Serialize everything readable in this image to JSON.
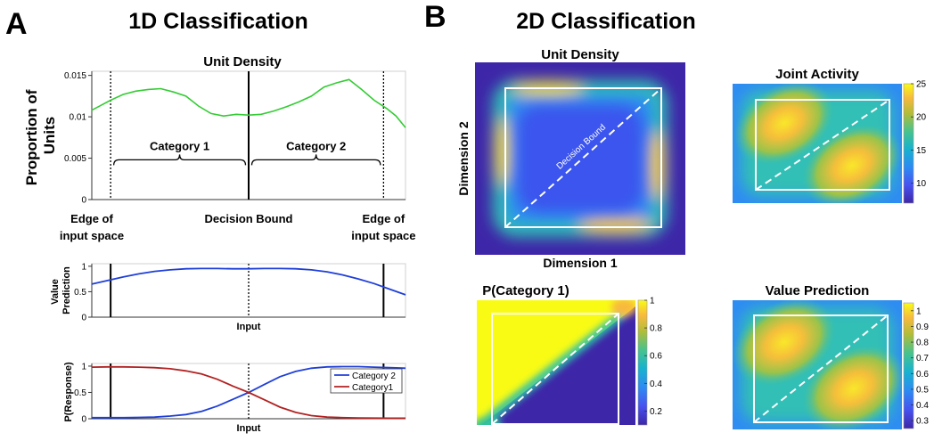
{
  "figure": {
    "panel_a_letter": "A",
    "panel_a_title": "1D Classification",
    "panel_b_letter": "B",
    "panel_b_title": "2D Classification"
  },
  "chart_data": [
    {
      "id": "unit-density-1d",
      "type": "line",
      "title": "Unit Density",
      "xlabel": "",
      "ylabel": "Proportion of Units",
      "xlim": [
        0,
        1
      ],
      "ylim": [
        0,
        0.0155
      ],
      "yticks": [
        0,
        0.005,
        0.01,
        0.015
      ],
      "ytick_labels": [
        "0",
        "0.005",
        "0.01",
        "0.015"
      ],
      "x": [
        0,
        0.03,
        0.06,
        0.1,
        0.14,
        0.18,
        0.22,
        0.26,
        0.3,
        0.34,
        0.38,
        0.42,
        0.46,
        0.5,
        0.54,
        0.58,
        0.62,
        0.66,
        0.7,
        0.74,
        0.78,
        0.82,
        0.86,
        0.9,
        0.94,
        0.97,
        1.0
      ],
      "series": [
        {
          "color": "#33cc33",
          "values": [
            0.0108,
            0.0114,
            0.012,
            0.0127,
            0.0131,
            0.0133,
            0.0134,
            0.013,
            0.0125,
            0.0113,
            0.0104,
            0.0101,
            0.0103,
            0.0102,
            0.0103,
            0.0107,
            0.0112,
            0.0118,
            0.0125,
            0.0136,
            0.0141,
            0.0145,
            0.0133,
            0.012,
            0.011,
            0.0101,
            0.0087
          ]
        }
      ],
      "vlines": [
        {
          "x": 0.06,
          "style": "dotted"
        },
        {
          "x": 0.5,
          "style": "solid"
        },
        {
          "x": 0.93,
          "style": "dotted"
        }
      ],
      "braces": [
        {
          "x0": 0.07,
          "x1": 0.49,
          "y": 0.0048,
          "label": "Category 1"
        },
        {
          "x0": 0.51,
          "x1": 0.92,
          "y": 0.0048,
          "label": "Category 2"
        }
      ],
      "annotations": [
        {
          "text": "Edge of\ninput space",
          "x": 0.0,
          "align": "center"
        },
        {
          "text": "Decision Bound",
          "x": 0.5,
          "align": "center"
        },
        {
          "text": "Edge of\ninput space",
          "x": 0.93,
          "align": "center"
        }
      ],
      "grid": false
    },
    {
      "id": "value-prediction-1d",
      "type": "line",
      "title": "",
      "xlabel": "Input",
      "ylabel": "Value\nPrediction",
      "xlim": [
        0,
        1
      ],
      "ylim": [
        0,
        1.05
      ],
      "yticks": [
        0,
        0.5,
        1
      ],
      "ytick_labels": [
        "0",
        "0.5",
        "1"
      ],
      "x": [
        0,
        0.05,
        0.1,
        0.15,
        0.2,
        0.25,
        0.3,
        0.35,
        0.4,
        0.45,
        0.5,
        0.55,
        0.6,
        0.65,
        0.7,
        0.75,
        0.8,
        0.85,
        0.9,
        0.95,
        1.0
      ],
      "series": [
        {
          "color": "#1f3fd8",
          "values": [
            0.65,
            0.72,
            0.79,
            0.85,
            0.9,
            0.93,
            0.95,
            0.955,
            0.955,
            0.95,
            0.95,
            0.955,
            0.955,
            0.95,
            0.93,
            0.89,
            0.83,
            0.75,
            0.66,
            0.55,
            0.44
          ]
        }
      ],
      "vlines": [
        {
          "x": 0.06,
          "style": "solid"
        },
        {
          "x": 0.5,
          "style": "dotted"
        },
        {
          "x": 0.93,
          "style": "solid"
        }
      ],
      "grid": false
    },
    {
      "id": "p-response-1d",
      "type": "line",
      "title": "",
      "xlabel": "Input",
      "ylabel": "P(Response)",
      "xlim": [
        0,
        1
      ],
      "ylim": [
        0,
        1.05
      ],
      "yticks": [
        0,
        0.5,
        1
      ],
      "ytick_labels": [
        "0",
        "0.5",
        "1"
      ],
      "x": [
        0,
        0.05,
        0.1,
        0.15,
        0.2,
        0.25,
        0.3,
        0.35,
        0.4,
        0.45,
        0.5,
        0.55,
        0.6,
        0.65,
        0.7,
        0.75,
        0.8,
        0.85,
        0.9,
        0.95,
        1.0
      ],
      "series": [
        {
          "name": "Category 2",
          "color": "#1f3fd8",
          "values": [
            0.02,
            0.02,
            0.02,
            0.025,
            0.03,
            0.05,
            0.08,
            0.14,
            0.24,
            0.37,
            0.5,
            0.65,
            0.8,
            0.9,
            0.96,
            0.985,
            0.99,
            0.99,
            0.98,
            0.97,
            0.96
          ]
        },
        {
          "name": "Category1",
          "color": "#b22222",
          "values": [
            0.98,
            0.985,
            0.985,
            0.98,
            0.97,
            0.95,
            0.91,
            0.85,
            0.75,
            0.62,
            0.5,
            0.36,
            0.22,
            0.12,
            0.06,
            0.03,
            0.02,
            0.015,
            0.012,
            0.01,
            0.01
          ]
        }
      ],
      "vlines": [
        {
          "x": 0.06,
          "style": "solid"
        },
        {
          "x": 0.5,
          "style": "dotted"
        },
        {
          "x": 0.93,
          "style": "solid"
        }
      ],
      "legend": "top-right",
      "grid": false
    },
    {
      "id": "unit-density-2d",
      "type": "heatmap",
      "title": "Unit Density",
      "xlabel": "Dimension 1",
      "ylabel": "Dimension 2",
      "annotation": "Decision Bound",
      "colorbar": false,
      "pattern": "ring"
    },
    {
      "id": "joint-activity-2d",
      "type": "heatmap",
      "title": "Joint Activity",
      "xlabel": "",
      "ylabel": "",
      "colorbar": true,
      "clim": [
        7,
        25
      ],
      "colorbar_ticks": [
        10,
        15,
        20,
        25
      ],
      "colorbar_tick_labels": [
        "10",
        "15",
        "20",
        "25"
      ],
      "pattern": "two-lobes"
    },
    {
      "id": "p-category1-2d",
      "type": "heatmap",
      "title": "P(Category 1)",
      "xlabel": "",
      "ylabel": "",
      "colorbar": true,
      "clim": [
        0.1,
        1
      ],
      "colorbar_ticks": [
        0.2,
        0.4,
        0.6,
        0.8,
        1
      ],
      "colorbar_tick_labels": [
        "0.2",
        "0.4",
        "0.6",
        "0.8",
        "1"
      ],
      "pattern": "split-diagonal"
    },
    {
      "id": "value-prediction-2d",
      "type": "heatmap",
      "title": "Value Prediction",
      "xlabel": "",
      "ylabel": "",
      "colorbar": true,
      "clim": [
        0.25,
        1.05
      ],
      "colorbar_ticks": [
        0.3,
        0.4,
        0.5,
        0.6,
        0.7,
        0.8,
        0.9,
        1
      ],
      "colorbar_tick_labels": [
        "0.3",
        "0.4",
        "0.5",
        "0.6",
        "0.7",
        "0.8",
        "0.9",
        "1"
      ],
      "pattern": "two-lobes"
    }
  ]
}
